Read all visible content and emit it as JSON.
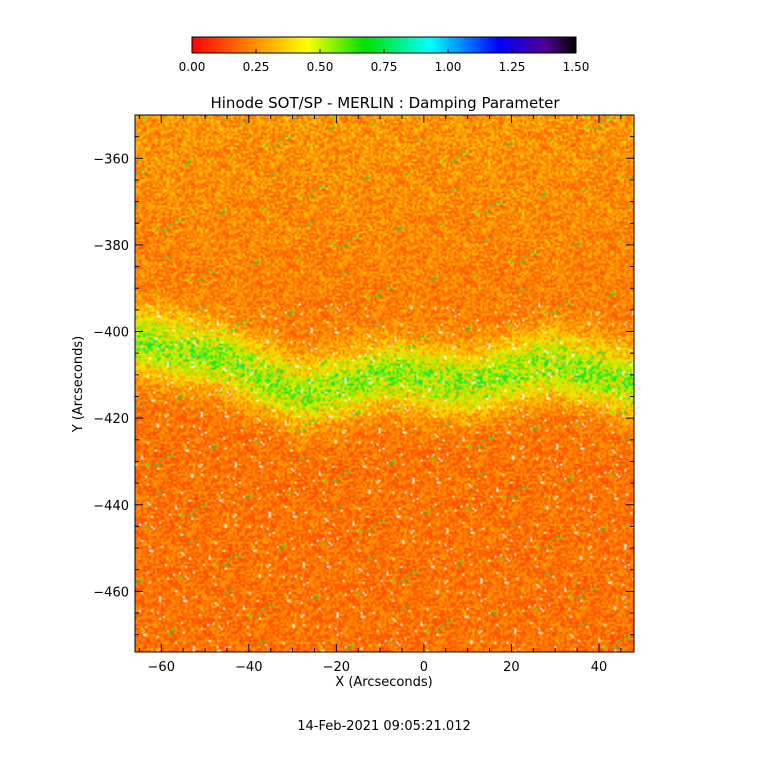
{
  "chart_data": {
    "type": "heatmap",
    "title": "Hinode SOT/SP - MERLIN : Damping Parameter",
    "xlabel": "X (Arcseconds)",
    "ylabel": "Y (Arcseconds)",
    "xlim": [
      -66,
      48
    ],
    "ylim": [
      -474,
      -350
    ],
    "x_ticks": [
      -60,
      -40,
      -20,
      0,
      20,
      40
    ],
    "x_tick_labels": [
      "−60",
      "−40",
      "−20",
      "0",
      "20",
      "40"
    ],
    "y_ticks": [
      -360,
      -380,
      -400,
      -420,
      -440,
      -460
    ],
    "y_tick_labels": [
      "−360",
      "−380",
      "−400",
      "−420",
      "−440",
      "−460"
    ],
    "colorbar": {
      "range": [
        0.0,
        1.5
      ],
      "ticks": [
        0.0,
        0.25,
        0.5,
        0.75,
        1.0,
        1.25,
        1.5
      ],
      "tick_labels": [
        "0.00",
        "0.25",
        "0.50",
        "0.75",
        "1.00",
        "1.25",
        "1.50"
      ],
      "colormap": "rainbow",
      "colors": [
        "#ff0000",
        "#ff8000",
        "#ffff00",
        "#00e000",
        "#00ffff",
        "#0000ff",
        "#400080",
        "#000000"
      ]
    },
    "grid": false
  },
  "footer": {
    "timestamp": "14-Feb-2021 09:05:21.012"
  }
}
